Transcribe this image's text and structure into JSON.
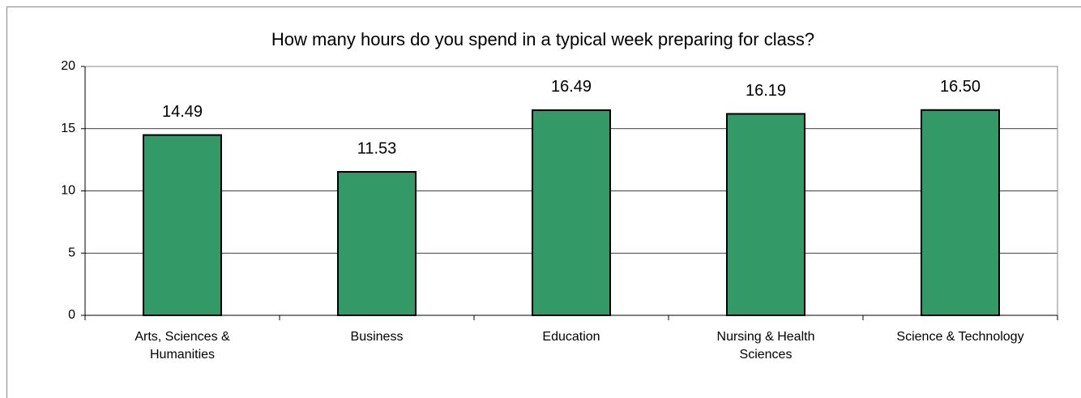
{
  "chart_data": {
    "type": "bar",
    "title": "How many hours do you spend in a typical week preparing for class?",
    "categories": [
      "Arts, Sciences & Humanities",
      "Business",
      "Education",
      "Nursing & Health Sciences",
      "Science & Technology"
    ],
    "values": [
      14.49,
      11.53,
      16.49,
      16.19,
      16.5
    ],
    "value_labels": [
      "14.49",
      "11.53",
      "16.49",
      "16.19",
      "16.50"
    ],
    "color": "#339966",
    "ylim": [
      0,
      20
    ],
    "yticks": [
      0,
      5,
      10,
      15,
      20
    ],
    "grid": true
  }
}
